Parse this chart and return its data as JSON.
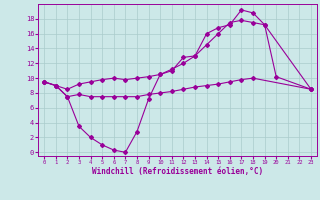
{
  "background_color": "#cce8e8",
  "grid_color": "#aacccc",
  "line_color": "#990099",
  "x_label": "Windchill (Refroidissement éolien,°C)",
  "xlim": [
    -0.5,
    23.5
  ],
  "ylim": [
    -0.5,
    20
  ],
  "yticks": [
    0,
    2,
    4,
    6,
    8,
    10,
    12,
    14,
    16,
    18
  ],
  "xticks": [
    0,
    1,
    2,
    3,
    4,
    5,
    6,
    7,
    8,
    9,
    10,
    11,
    12,
    13,
    14,
    15,
    16,
    17,
    18,
    19,
    20,
    21,
    22,
    23
  ],
  "line1_y": [
    9.5,
    9.0,
    7.5,
    3.5,
    2.0,
    1.0,
    0.3,
    0.0,
    2.8,
    7.2,
    10.5,
    11.0,
    12.8,
    13.0,
    16.0,
    16.8,
    17.2,
    19.2,
    18.8,
    17.2,
    10.2,
    null,
    null,
    8.5
  ],
  "line2_y": [
    9.5,
    9.0,
    7.5,
    7.8,
    7.5,
    7.5,
    7.5,
    7.5,
    7.5,
    7.8,
    8.0,
    8.2,
    8.5,
    8.8,
    9.0,
    9.2,
    9.5,
    9.8,
    10.0,
    null,
    null,
    null,
    null,
    8.5
  ],
  "line3_y": [
    9.5,
    9.0,
    8.5,
    9.2,
    9.5,
    9.8,
    10.0,
    9.8,
    10.0,
    10.2,
    10.5,
    11.2,
    12.0,
    13.0,
    14.5,
    16.0,
    17.5,
    17.8,
    17.5,
    17.2,
    null,
    null,
    null,
    8.5
  ]
}
